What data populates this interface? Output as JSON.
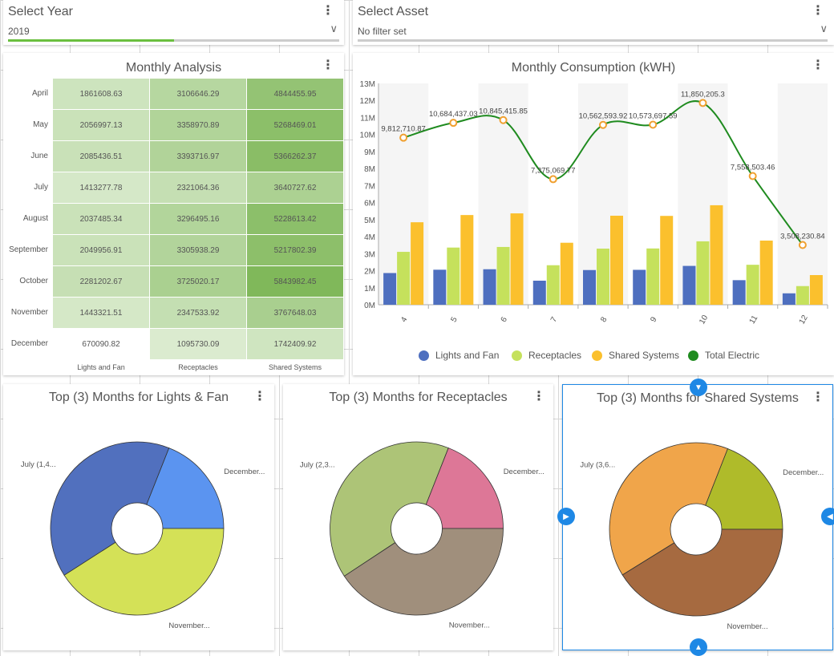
{
  "year_filter": {
    "label": "Select Year",
    "value": "2019",
    "progress": 0.5
  },
  "asset_filter": {
    "label": "Select Asset",
    "value": "No filter set"
  },
  "menu_glyph": "⋮",
  "chevron_glyph": "∨",
  "monthly_analysis": {
    "title": "Monthly Analysis",
    "columns": [
      "Lights and Fan",
      "Receptacles",
      "Shared Systems"
    ],
    "rows": [
      {
        "month": "April",
        "values": [
          "1861608.63",
          "3106646.29",
          "4844455.95"
        ]
      },
      {
        "month": "May",
        "values": [
          "2056997.13",
          "3358970.89",
          "5268469.01"
        ]
      },
      {
        "month": "June",
        "values": [
          "2085436.51",
          "3393716.97",
          "5366262.37"
        ]
      },
      {
        "month": "July",
        "values": [
          "1413277.78",
          "2321064.36",
          "3640727.62"
        ]
      },
      {
        "month": "August",
        "values": [
          "2037485.34",
          "3296495.16",
          "5228613.42"
        ]
      },
      {
        "month": "September",
        "values": [
          "2049956.91",
          "3305938.29",
          "5217802.39"
        ]
      },
      {
        "month": "October",
        "values": [
          "2281202.67",
          "3725020.17",
          "5843982.45"
        ]
      },
      {
        "month": "November",
        "values": [
          "1443321.51",
          "2347533.92",
          "3767648.03"
        ]
      },
      {
        "month": "December",
        "values": [
          "670090.82",
          "1095730.09",
          "1742409.92"
        ]
      }
    ]
  },
  "chart_data": {
    "type": "bar",
    "title": "Monthly Consumption (kWH)",
    "categories": [
      "4",
      "5",
      "6",
      "7",
      "8",
      "9",
      "10",
      "11",
      "12"
    ],
    "ylim": [
      0,
      13000000
    ],
    "ytick_labels": [
      "0M",
      "1M",
      "2M",
      "3M",
      "4M",
      "5M",
      "6M",
      "7M",
      "8M",
      "9M",
      "10M",
      "11M",
      "12M",
      "13M"
    ],
    "grid": false,
    "legend_position": "bottom",
    "series": [
      {
        "name": "Lights and Fan",
        "type": "bar",
        "color": "#4e6fbf",
        "values": [
          1861608.63,
          2056997.13,
          2085436.51,
          1413277.78,
          2037485.34,
          2049956.91,
          2281202.67,
          1443321.51,
          670090.82
        ]
      },
      {
        "name": "Receptacles",
        "type": "bar",
        "color": "#c5e15c",
        "values": [
          3106646.29,
          3358970.89,
          3393716.97,
          2321064.36,
          3296495.16,
          3305938.29,
          3725020.17,
          2347533.92,
          1095730.09
        ]
      },
      {
        "name": "Shared Systems",
        "type": "bar",
        "color": "#fbc02d",
        "values": [
          4844455.95,
          5268469.01,
          5366262.37,
          3640727.62,
          5228613.42,
          5217802.39,
          5843982.45,
          3767648.03,
          1742409.92
        ]
      },
      {
        "name": "Total Electric",
        "type": "line",
        "color": "#1f8b1f",
        "marker_color": "#f0a030",
        "values": [
          9812710.87,
          10684437.03,
          10845415.85,
          7375069.77,
          10562593.92,
          10573697.59,
          11850205.3,
          7558503.46,
          3508230.84
        ],
        "labels": [
          "9,812,710.87",
          "10,684,437.03",
          "10,845,415.85",
          "7,375,069.77",
          "10,562,593.92",
          "10,573,697.59",
          "11,850,205.3",
          "7,558,503.46",
          "3,508,230.84"
        ]
      }
    ]
  },
  "pies": [
    {
      "title": "Top (3) Months for Lights & Fan",
      "slices": [
        {
          "label": "July (1,4...",
          "value": 1413277.78,
          "color": "#5170be"
        },
        {
          "label": "December...",
          "value": 670090.82,
          "color": "#5b94f0"
        },
        {
          "label": "November...",
          "value": 1443321.51,
          "color": "#d4e157"
        }
      ]
    },
    {
      "title": "Top (3) Months for Receptacles",
      "slices": [
        {
          "label": "July (2,3...",
          "value": 2321064.36,
          "color": "#adc477"
        },
        {
          "label": "December...",
          "value": 1095730.09,
          "color": "#dd7797"
        },
        {
          "label": "November...",
          "value": 2347533.92,
          "color": "#a08f7c"
        }
      ]
    },
    {
      "title": "Top (3) Months for Shared Systems",
      "slices": [
        {
          "label": "July (3,6...",
          "value": 3640727.62,
          "color": "#f0a54a"
        },
        {
          "label": "December...",
          "value": 1742409.92,
          "color": "#afbb2a"
        },
        {
          "label": "November...",
          "value": 3767648.03,
          "color": "#a66a40"
        }
      ]
    }
  ],
  "nav_icons": {
    "left": "▶",
    "right": "◀",
    "top": "▼",
    "bottom": "▲"
  }
}
